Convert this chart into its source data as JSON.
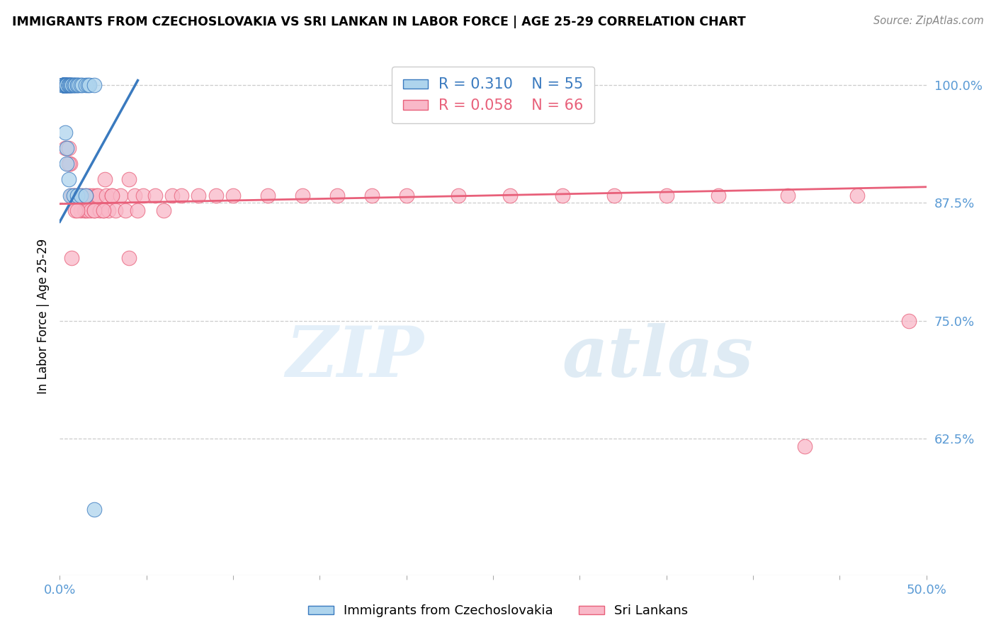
{
  "title": "IMMIGRANTS FROM CZECHOSLOVAKIA VS SRI LANKAN IN LABOR FORCE | AGE 25-29 CORRELATION CHART",
  "source": "Source: ZipAtlas.com",
  "ylabel": "In Labor Force | Age 25-29",
  "xlim": [
    0.0,
    0.5
  ],
  "ylim": [
    0.48,
    1.03
  ],
  "yticks": [
    0.625,
    0.75,
    0.875,
    1.0
  ],
  "ytick_labels": [
    "62.5%",
    "75.0%",
    "87.5%",
    "100.0%"
  ],
  "xticks": [
    0.0,
    0.05,
    0.1,
    0.15,
    0.2,
    0.25,
    0.3,
    0.35,
    0.4,
    0.45,
    0.5
  ],
  "xtick_labels": [
    "0.0%",
    "",
    "",
    "",
    "",
    "",
    "",
    "",
    "",
    "",
    "50.0%"
  ],
  "legend_blue_R": "0.310",
  "legend_blue_N": "55",
  "legend_pink_R": "0.058",
  "legend_pink_N": "66",
  "blue_color": "#aed4ed",
  "pink_color": "#f9b8c8",
  "blue_line_color": "#3a7abf",
  "pink_line_color": "#e8607a",
  "axis_color": "#5b9bd5",
  "watermark_zip": "ZIP",
  "watermark_atlas": "atlas",
  "blue_scatter_x": [
    0.002,
    0.002,
    0.002,
    0.002,
    0.002,
    0.002,
    0.002,
    0.002,
    0.002,
    0.002,
    0.003,
    0.003,
    0.003,
    0.003,
    0.003,
    0.003,
    0.003,
    0.004,
    0.004,
    0.004,
    0.004,
    0.004,
    0.005,
    0.005,
    0.005,
    0.005,
    0.006,
    0.006,
    0.006,
    0.007,
    0.007,
    0.007,
    0.008,
    0.008,
    0.009,
    0.009,
    0.01,
    0.01,
    0.011,
    0.012,
    0.013,
    0.015,
    0.016,
    0.017,
    0.02,
    0.003,
    0.004,
    0.004,
    0.005,
    0.006,
    0.008,
    0.01,
    0.012,
    0.015,
    0.02
  ],
  "blue_scatter_y": [
    1.0,
    1.0,
    1.0,
    1.0,
    1.0,
    1.0,
    1.0,
    1.0,
    1.0,
    1.0,
    1.0,
    1.0,
    1.0,
    1.0,
    1.0,
    1.0,
    1.0,
    1.0,
    1.0,
    1.0,
    1.0,
    1.0,
    1.0,
    1.0,
    1.0,
    1.0,
    1.0,
    1.0,
    1.0,
    1.0,
    1.0,
    1.0,
    1.0,
    1.0,
    1.0,
    1.0,
    1.0,
    1.0,
    1.0,
    1.0,
    1.0,
    1.0,
    1.0,
    1.0,
    1.0,
    0.95,
    0.933,
    0.917,
    0.9,
    0.883,
    0.883,
    0.883,
    0.883,
    0.883,
    0.55
  ],
  "pink_scatter_x": [
    0.003,
    0.004,
    0.005,
    0.006,
    0.007,
    0.008,
    0.009,
    0.01,
    0.011,
    0.012,
    0.013,
    0.014,
    0.015,
    0.016,
    0.017,
    0.018,
    0.019,
    0.02,
    0.021,
    0.022,
    0.023,
    0.025,
    0.026,
    0.027,
    0.028,
    0.03,
    0.032,
    0.035,
    0.038,
    0.04,
    0.043,
    0.045,
    0.048,
    0.055,
    0.06,
    0.065,
    0.07,
    0.08,
    0.09,
    0.1,
    0.12,
    0.14,
    0.16,
    0.18,
    0.2,
    0.23,
    0.26,
    0.29,
    0.32,
    0.38,
    0.42,
    0.46,
    0.49,
    0.003,
    0.005,
    0.007,
    0.009,
    0.01,
    0.015,
    0.02,
    0.025,
    0.03,
    0.005,
    0.04,
    0.35,
    0.43
  ],
  "pink_scatter_y": [
    1.0,
    1.0,
    1.0,
    0.917,
    0.883,
    0.883,
    0.883,
    0.883,
    0.883,
    0.867,
    0.883,
    0.867,
    0.867,
    0.867,
    0.883,
    0.867,
    0.883,
    0.867,
    0.883,
    0.883,
    0.867,
    0.867,
    0.9,
    0.883,
    0.867,
    0.883,
    0.867,
    0.883,
    0.867,
    0.9,
    0.883,
    0.867,
    0.883,
    0.883,
    0.867,
    0.883,
    0.883,
    0.883,
    0.883,
    0.883,
    0.883,
    0.883,
    0.883,
    0.883,
    0.883,
    0.883,
    0.883,
    0.883,
    0.883,
    0.883,
    0.883,
    0.883,
    0.75,
    0.933,
    0.917,
    0.817,
    0.867,
    0.867,
    0.883,
    0.867,
    0.867,
    0.883,
    0.933,
    0.817,
    0.883,
    0.617
  ],
  "blue_trend_x": [
    0.0,
    0.045
  ],
  "blue_trend_y": [
    0.855,
    1.005
  ],
  "pink_trend_x": [
    0.0,
    0.5
  ],
  "pink_trend_y": [
    0.874,
    0.892
  ]
}
